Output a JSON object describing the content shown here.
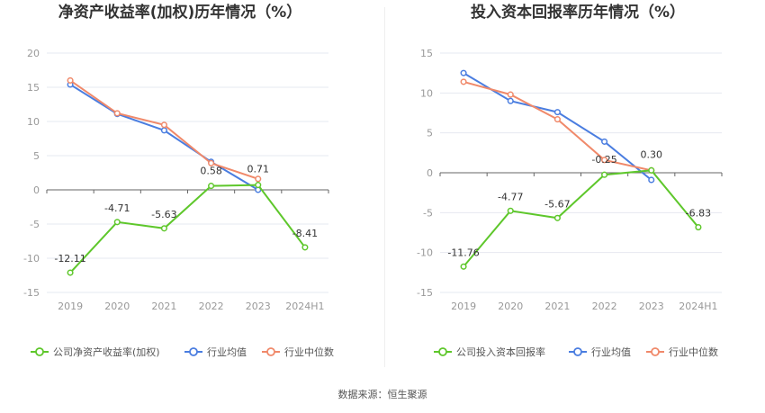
{
  "colors": {
    "company": "#5ec72b",
    "industry_avg": "#4a7de0",
    "industry_median": "#f0896a",
    "grid": "#e6e8f0",
    "axis": "#666666"
  },
  "legend": {
    "industry_avg": "行业均值",
    "industry_median": "行业中位数"
  },
  "source": "数据来源：恒生聚源",
  "chart_data": [
    {
      "type": "line",
      "title": "净资产收益率(加权)历年情况（%）",
      "categories": [
        "2019",
        "2020",
        "2021",
        "2022",
        "2023",
        "2024H1"
      ],
      "ylim": [
        -15,
        20
      ],
      "yticks": [
        -15,
        -10,
        -5,
        0,
        5,
        10,
        15,
        20
      ],
      "grid": true,
      "legend_position": "bottom",
      "series": [
        {
          "name": "公司净资产收益率(加权)",
          "key": "company",
          "values": [
            -12.11,
            -4.71,
            -5.63,
            0.58,
            0.71,
            -8.41
          ],
          "labels": [
            "-12.11",
            "-4.71",
            "-5.63",
            "0.58",
            "0.71",
            "-8.41"
          ]
        },
        {
          "name": "行业均值",
          "key": "industry_avg",
          "values": [
            15.4,
            11.1,
            8.7,
            4.1,
            0.0,
            null
          ]
        },
        {
          "name": "行业中位数",
          "key": "industry_median",
          "values": [
            16.0,
            11.2,
            9.5,
            3.9,
            1.6,
            null
          ]
        }
      ]
    },
    {
      "type": "line",
      "title": "投入资本回报率历年情况（%）",
      "categories": [
        "2019",
        "2020",
        "2021",
        "2022",
        "2023",
        "2024H1"
      ],
      "ylim": [
        -15,
        15
      ],
      "yticks": [
        -15,
        -10,
        -5,
        0,
        5,
        10,
        15
      ],
      "grid": true,
      "legend_position": "bottom",
      "series": [
        {
          "name": "公司投入资本回报率",
          "key": "company",
          "values": [
            -11.76,
            -4.77,
            -5.67,
            -0.25,
            0.3,
            -6.83
          ],
          "labels": [
            "-11.76",
            "-4.77",
            "-5.67",
            "-0.25",
            "0.30",
            "-6.83"
          ]
        },
        {
          "name": "行业均值",
          "key": "industry_avg",
          "values": [
            12.5,
            9.0,
            7.6,
            3.9,
            -0.9,
            null
          ]
        },
        {
          "name": "行业中位数",
          "key": "industry_median",
          "values": [
            11.4,
            9.8,
            6.7,
            1.6,
            0.3,
            null
          ]
        }
      ]
    }
  ]
}
